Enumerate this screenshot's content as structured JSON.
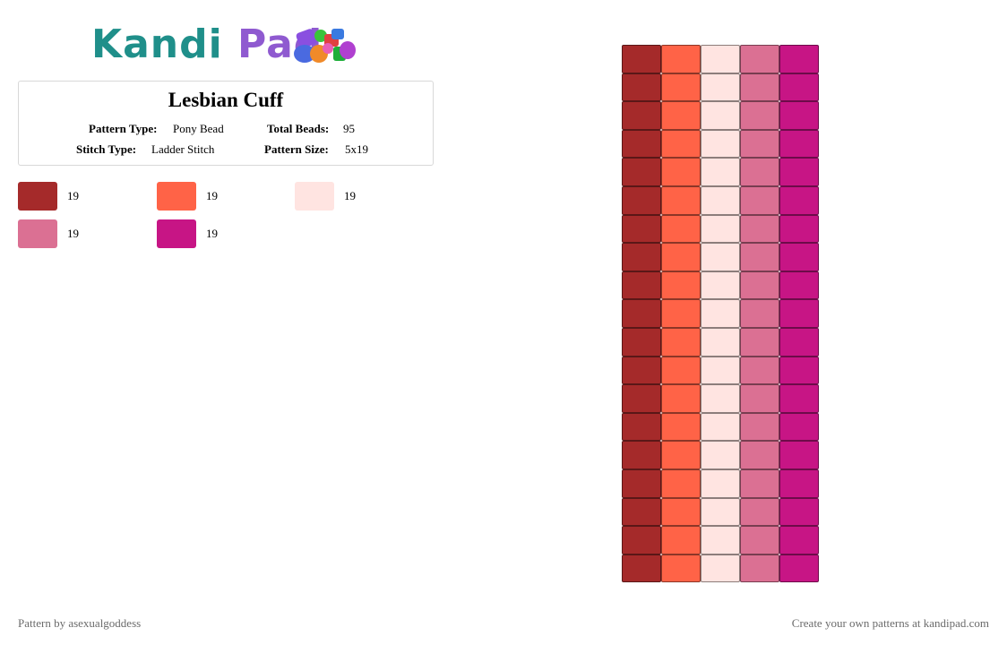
{
  "logo": {
    "word1": "Kandi",
    "word2": "Pad"
  },
  "pattern": {
    "title": "Lesbian Cuff",
    "pattern_type_label": "Pattern Type:",
    "pattern_type": "Pony Bead",
    "total_beads_label": "Total Beads:",
    "total_beads": "95",
    "stitch_type_label": "Stitch Type:",
    "stitch_type": "Ladder Stitch",
    "pattern_size_label": "Pattern Size:",
    "pattern_size": "5x19"
  },
  "legend": [
    {
      "color": "#a52a2a",
      "count": "19"
    },
    {
      "color": "#ff6347",
      "count": "19"
    },
    {
      "color": "#ffe4e1",
      "count": "19"
    },
    {
      "color": "#db7093",
      "count": "19"
    },
    {
      "color": "#c71585",
      "count": "19"
    }
  ],
  "grid": {
    "columns": [
      "#a52a2a",
      "#ff6347",
      "#ffe4e1",
      "#db7093",
      "#c71585"
    ],
    "rows": 19
  },
  "footer": {
    "author": "Pattern by asexualgoddess",
    "promo": "Create your own patterns at kandipad.com"
  }
}
